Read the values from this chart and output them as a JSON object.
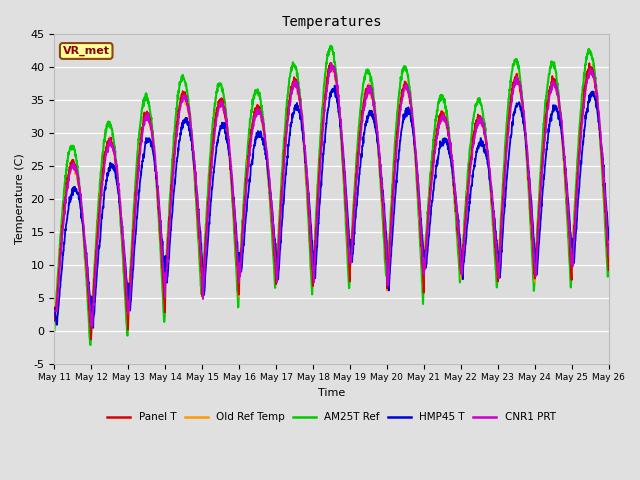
{
  "title": "Temperatures",
  "ylabel": "Temperature (C)",
  "xlabel": "Time",
  "ylim": [
    -5,
    45
  ],
  "fig_bg": "#e0e0e0",
  "plot_bg": "#dcdcdc",
  "annotation_text": "VR_met",
  "annotation_bg": "#ffff99",
  "annotation_border": "#8b4513",
  "series": [
    {
      "label": "Panel T",
      "color": "#dd0000",
      "lw": 1.3,
      "zorder": 4
    },
    {
      "label": "Old Ref Temp",
      "color": "#ff9900",
      "lw": 1.3,
      "zorder": 3
    },
    {
      "label": "AM25T Ref",
      "color": "#00cc00",
      "lw": 1.5,
      "zorder": 2
    },
    {
      "label": "HMP45 T",
      "color": "#0000dd",
      "lw": 1.3,
      "zorder": 5
    },
    {
      "label": "CNR1 PRT",
      "color": "#cc00cc",
      "lw": 1.3,
      "zorder": 6
    }
  ],
  "xtick_labels": [
    "May 11",
    "May 12",
    "May 13",
    "May 14",
    "May 15",
    "May 16",
    "May 17",
    "May 18",
    "May 19",
    "May 20",
    "May 21",
    "May 22",
    "May 23",
    "May 24",
    "May 25",
    "May 26"
  ],
  "ytick_values": [
    -5,
    0,
    5,
    10,
    15,
    20,
    25,
    30,
    35,
    40,
    45
  ],
  "n_days": 15,
  "pts_per_day": 144
}
